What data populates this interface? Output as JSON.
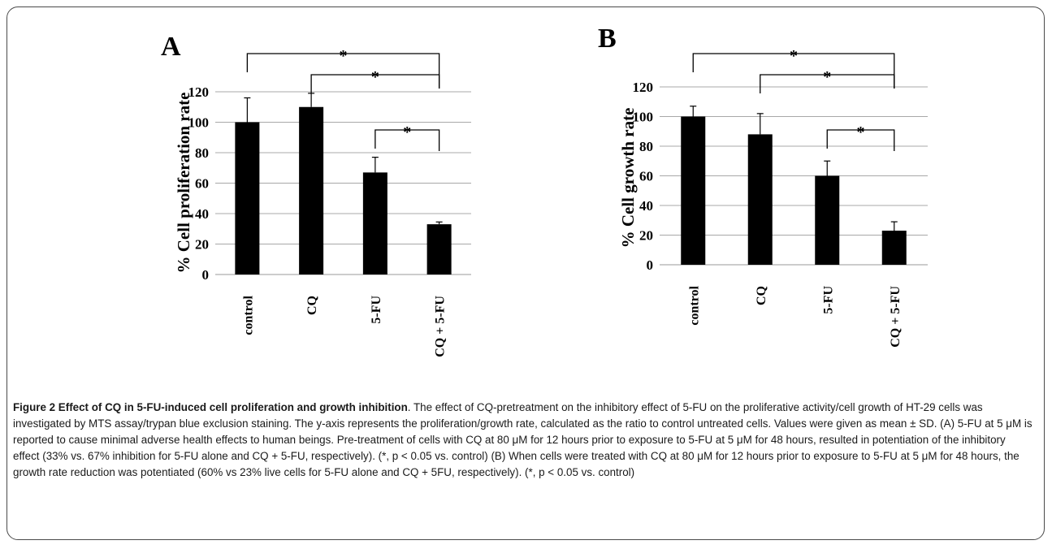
{
  "chart_data": [
    {
      "type": "bar",
      "panel_label": "A",
      "categories": [
        "control",
        "CQ",
        "5-FU",
        "CQ + 5-FU"
      ],
      "values": [
        100,
        110,
        67,
        33
      ],
      "errors": [
        16,
        9,
        10,
        1.5
      ],
      "ylabel": "% Cell proliferation rate",
      "ylim": [
        0,
        120
      ],
      "yticks": [
        0,
        20,
        40,
        60,
        80,
        100,
        120
      ],
      "grid": true,
      "bar_color": "#000000",
      "significance": [
        {
          "from": 0,
          "to": 3,
          "label": "*"
        },
        {
          "from": 1,
          "to": 3,
          "label": "*"
        },
        {
          "from": 2,
          "to": 3,
          "label": "*"
        }
      ]
    },
    {
      "type": "bar",
      "panel_label": "B",
      "categories": [
        "control",
        "CQ",
        "5-FU",
        "CQ + 5-FU"
      ],
      "values": [
        100,
        88,
        60,
        23
      ],
      "errors": [
        7,
        14,
        10,
        6
      ],
      "ylabel": "% Cell growth rate",
      "ylim": [
        0,
        120
      ],
      "yticks": [
        0,
        20,
        40,
        60,
        80,
        100,
        120
      ],
      "grid": true,
      "bar_color": "#000000",
      "significance": [
        {
          "from": 0,
          "to": 3,
          "label": "*"
        },
        {
          "from": 1,
          "to": 3,
          "label": "*"
        },
        {
          "from": 2,
          "to": 3,
          "label": "*"
        }
      ]
    }
  ],
  "caption": {
    "title": "Figure 2 Effect of CQ in 5-FU-induced cell proliferation and growth inhibition",
    "body": ". The effect of CQ-pretreatment on the inhibitory effect of 5-FU on the proliferative activity/cell growth of HT-29 cells was investigated by MTS assay/trypan blue exclusion staining. The y-axis represents the proliferation/growth rate, calculated as the ratio to control untreated cells. Values were given as mean ± SD. (A) 5-FU at 5 μM is reported to cause minimal adverse health effects to human beings. Pre-treatment of cells with CQ at 80 μM for 12 hours prior to exposure to 5-FU at 5 μM for 48 hours, resulted in potentiation of the inhibitory effect (33% vs. 67% inhibition for 5-FU alone and CQ + 5-FU, respectively). (*, p < 0.05 vs. control) (B) When cells were treated with CQ at 80 μM for 12 hours prior to exposure to 5-FU at 5 μM for 48 hours, the growth rate reduction was potentiated (60% vs 23% live cells for 5-FU alone and CQ + 5FU, respectively). (*, p < 0.05 vs. control)"
  }
}
